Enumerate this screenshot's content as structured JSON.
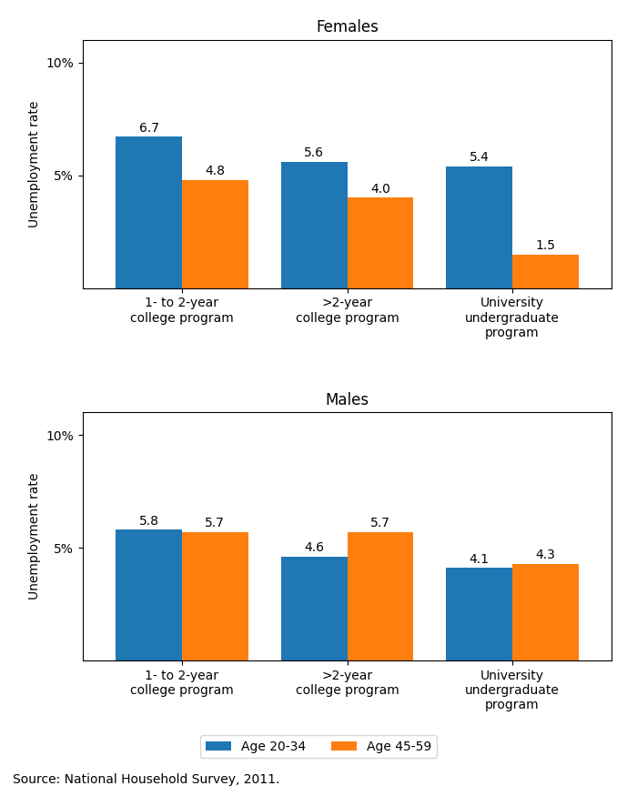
{
  "chart_data": [
    {
      "type": "bar",
      "title": "Females",
      "categories": [
        "1- to 2-year\ncollege program",
        ">2-year\ncollege program",
        "University\nundergraduate\nprogram"
      ],
      "series": [
        {
          "name": "Age 20-34",
          "values": [
            6.7,
            5.6,
            5.4
          ]
        },
        {
          "name": "Age 45-59",
          "values": [
            4.8,
            4.0,
            1.5
          ]
        }
      ],
      "y_label": "Unemployment rate",
      "ylim": [
        0,
        11
      ],
      "yticks": [
        {
          "value": 5,
          "label": "5%"
        },
        {
          "value": 10,
          "label": "10%"
        }
      ],
      "data_labels": true
    },
    {
      "type": "bar",
      "title": "Males",
      "categories": [
        "1- to 2-year\ncollege program",
        ">2-year\ncollege program",
        "University\nundergraduate\nprogram"
      ],
      "series": [
        {
          "name": "Age 20-34",
          "values": [
            5.8,
            4.6,
            4.1
          ]
        },
        {
          "name": "Age 45-59",
          "values": [
            5.7,
            5.7,
            4.3
          ]
        }
      ],
      "y_label": "Unemployment rate",
      "ylim": [
        0,
        11
      ],
      "yticks": [
        {
          "value": 5,
          "label": "5%"
        },
        {
          "value": 10,
          "label": "10%"
        }
      ],
      "data_labels": true,
      "legend": "lower center",
      "annotations": [
        "Source: National Household Survey, 2011."
      ]
    }
  ]
}
